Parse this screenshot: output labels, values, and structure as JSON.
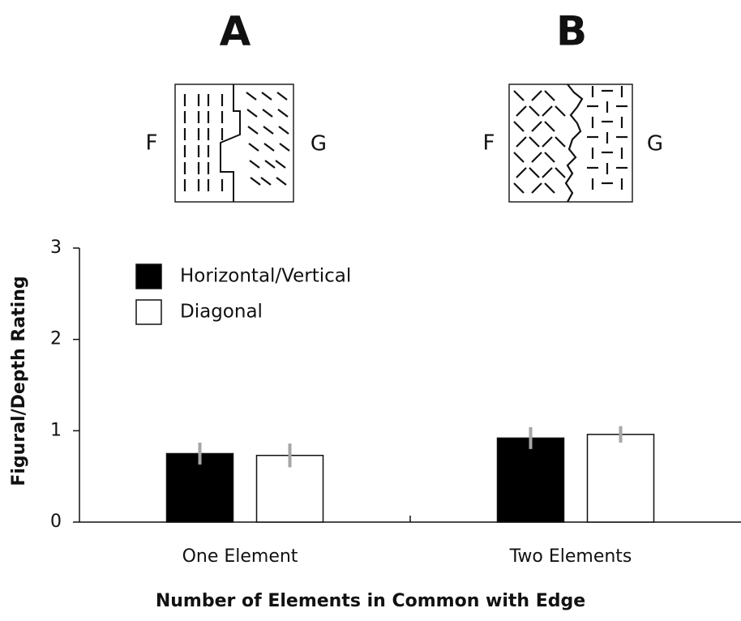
{
  "panels": [
    {
      "label": "A",
      "left": "F",
      "right": "G"
    },
    {
      "label": "B",
      "left": "F",
      "right": "G"
    }
  ],
  "chart_data": {
    "type": "bar",
    "xlabel": "Number of Elements in Common with Edge",
    "ylabel": "Figural/Depth Rating",
    "categories": [
      "One Element",
      "Two Elements"
    ],
    "series": [
      {
        "name": "Horizontal/Vertical",
        "color": "#000000",
        "values": [
          0.75,
          0.92
        ],
        "errors": [
          0.12,
          0.12
        ]
      },
      {
        "name": "Diagonal",
        "color": "#ffffff",
        "values": [
          0.73,
          0.96
        ],
        "errors": [
          0.13,
          0.09
        ]
      }
    ],
    "error_color": "#a6a6a6",
    "ylim": [
      0,
      3
    ],
    "yticks": [
      0,
      1,
      2,
      3
    ],
    "grid": false,
    "legend": "upper left"
  }
}
